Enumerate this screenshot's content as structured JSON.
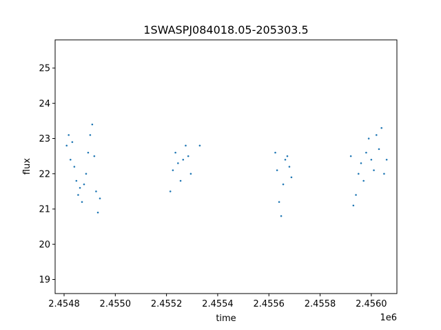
{
  "chart_data": {
    "type": "scatter",
    "title": "1SWASPJ084018.05-205303.5",
    "xlabel": "time",
    "ylabel": "flux",
    "x_offset_label": "1e6",
    "x_ticks": [
      {
        "value": 2454800,
        "label": "2.4548"
      },
      {
        "value": 2455000,
        "label": "2.4550"
      },
      {
        "value": 2455200,
        "label": "2.4552"
      },
      {
        "value": 2455400,
        "label": "2.4554"
      },
      {
        "value": 2455600,
        "label": "2.4556"
      },
      {
        "value": 2455800,
        "label": "2.4558"
      },
      {
        "value": 2456000,
        "label": "2.4560"
      }
    ],
    "y_ticks": [
      {
        "value": 19,
        "label": "19"
      },
      {
        "value": 20,
        "label": "20"
      },
      {
        "value": 21,
        "label": "21"
      },
      {
        "value": 22,
        "label": "22"
      },
      {
        "value": 23,
        "label": "23"
      },
      {
        "value": 24,
        "label": "24"
      },
      {
        "value": 25,
        "label": "25"
      }
    ],
    "xlim": [
      2454765,
      2456100
    ],
    "ylim": [
      18.6,
      25.8
    ],
    "grid": false,
    "marker_color": "#1f77b4",
    "series": [
      {
        "points": [
          [
            2454810,
            22.8
          ],
          [
            2454818,
            23.1
          ],
          [
            2454825,
            22.4
          ],
          [
            2454832,
            22.9
          ],
          [
            2454840,
            22.2
          ],
          [
            2454848,
            21.8
          ],
          [
            2454855,
            21.4
          ],
          [
            2454862,
            21.6
          ],
          [
            2454870,
            21.2
          ],
          [
            2454878,
            21.7
          ],
          [
            2454886,
            22.0
          ],
          [
            2454894,
            22.6
          ],
          [
            2454902,
            23.1
          ],
          [
            2454910,
            23.4
          ],
          [
            2454918,
            22.5
          ],
          [
            2454925,
            21.5
          ],
          [
            2454932,
            20.9
          ],
          [
            2454940,
            21.3
          ],
          [
            2455215,
            21.5
          ],
          [
            2455225,
            22.1
          ],
          [
            2455235,
            22.6
          ],
          [
            2455245,
            22.3
          ],
          [
            2455255,
            21.8
          ],
          [
            2455265,
            22.4
          ],
          [
            2455275,
            22.8
          ],
          [
            2455285,
            22.5
          ],
          [
            2455295,
            22.0
          ],
          [
            2455330,
            22.8
          ],
          [
            2455625,
            22.6
          ],
          [
            2455632,
            22.1
          ],
          [
            2455640,
            21.2
          ],
          [
            2455648,
            20.8
          ],
          [
            2455656,
            21.7
          ],
          [
            2455664,
            22.4
          ],
          [
            2455672,
            22.5
          ],
          [
            2455680,
            22.2
          ],
          [
            2455688,
            21.9
          ],
          [
            2455920,
            22.5
          ],
          [
            2455930,
            21.1
          ],
          [
            2455940,
            21.4
          ],
          [
            2455950,
            22.0
          ],
          [
            2455960,
            22.3
          ],
          [
            2455970,
            21.8
          ],
          [
            2455980,
            22.6
          ],
          [
            2455990,
            23.0
          ],
          [
            2456000,
            22.4
          ],
          [
            2456010,
            22.1
          ],
          [
            2456020,
            23.1
          ],
          [
            2456030,
            22.7
          ],
          [
            2456040,
            23.3
          ],
          [
            2456050,
            22.0
          ],
          [
            2456060,
            22.4
          ]
        ]
      }
    ]
  }
}
